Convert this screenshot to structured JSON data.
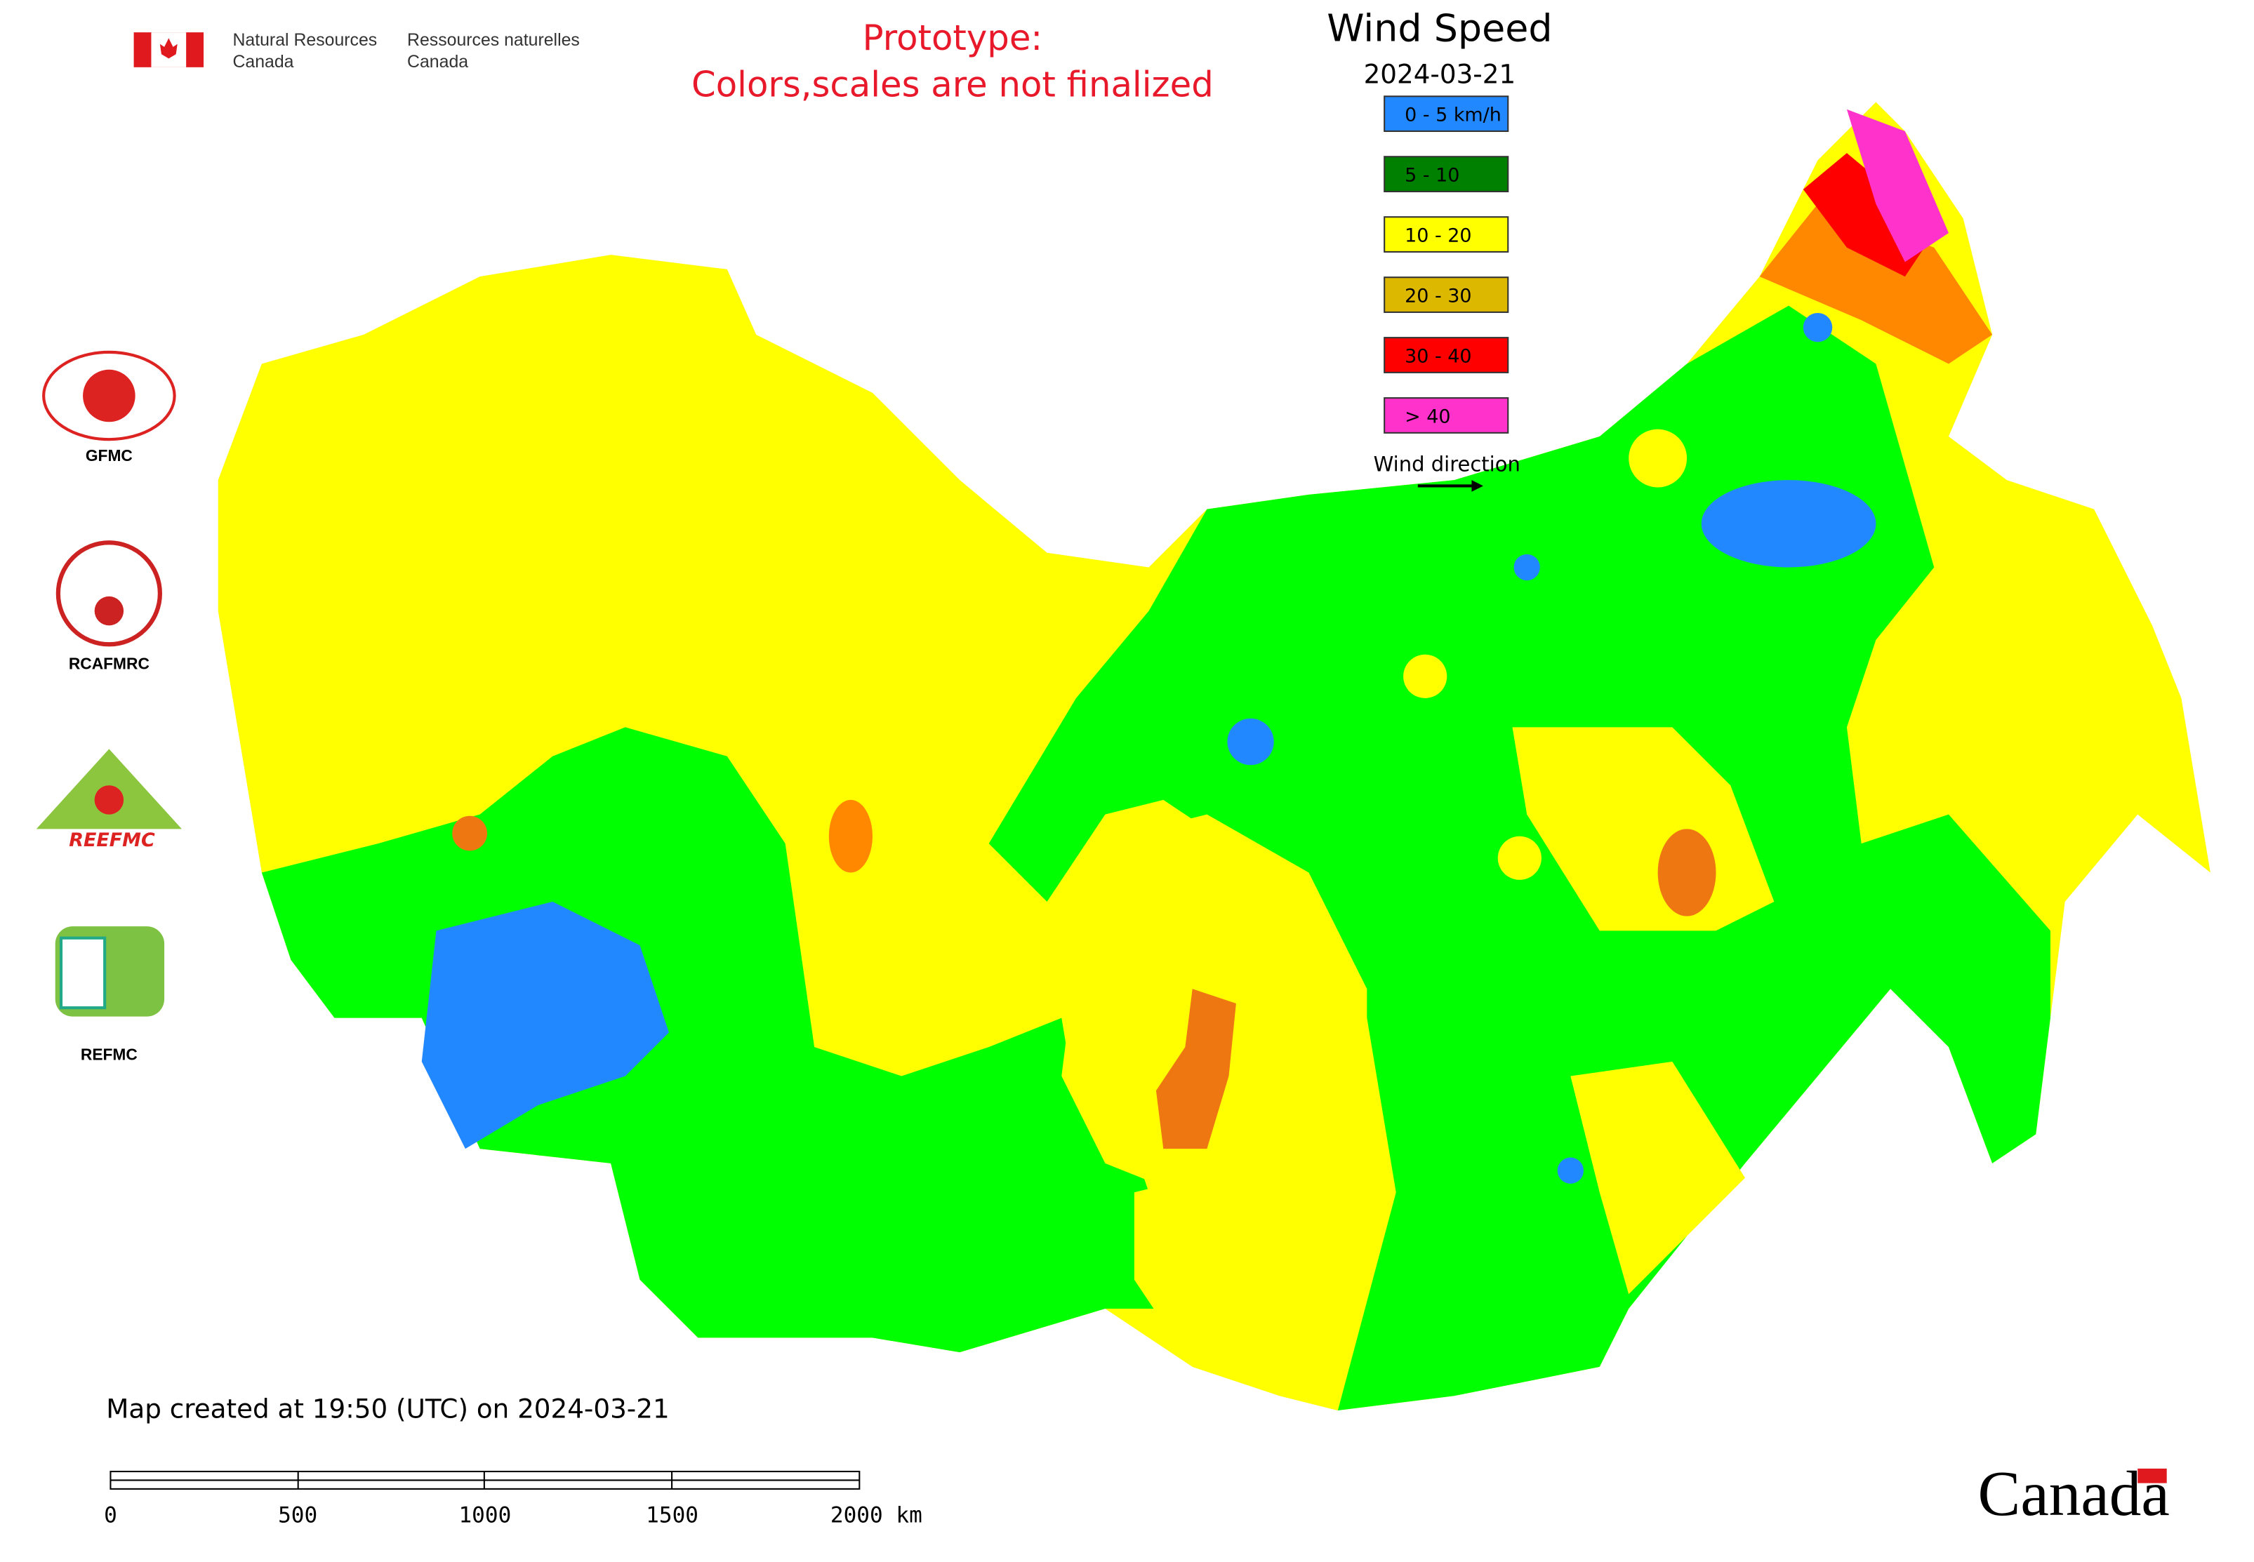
{
  "header": {
    "nrcan_en": [
      "Natural Resources",
      "Canada"
    ],
    "nrcan_fr": [
      "Ressources naturelles",
      "Canada"
    ]
  },
  "notice": [
    "Prototype:",
    "Colors,scales are not finalized"
  ],
  "legend": {
    "title": "Wind Speed",
    "date": "2024-03-21",
    "items": [
      {
        "label": "0 - 5 km/h",
        "color": "#2288ff"
      },
      {
        "label": "5 - 10",
        "color": "#008000"
      },
      {
        "label": "10 - 20",
        "color": "#ffff00"
      },
      {
        "label": "20 - 30",
        "color": "#ddb800"
      },
      {
        "label": "30 - 40",
        "color": "#ff0000"
      },
      {
        "label": "> 40",
        "color": "#ff33cc"
      }
    ],
    "direction": "Wind direction"
  },
  "logos": {
    "gfmc": "GFMC",
    "rcafmrc": "RCAFMRC",
    "reefmc": "REEFMC",
    "refmc": "REFMC"
  },
  "footer": {
    "created": "Map created at 19:50 (UTC) on 2024-03-21",
    "scale": [
      "0",
      "500",
      "1000",
      "1500",
      "2000 km"
    ],
    "wordmark": "Canada"
  }
}
